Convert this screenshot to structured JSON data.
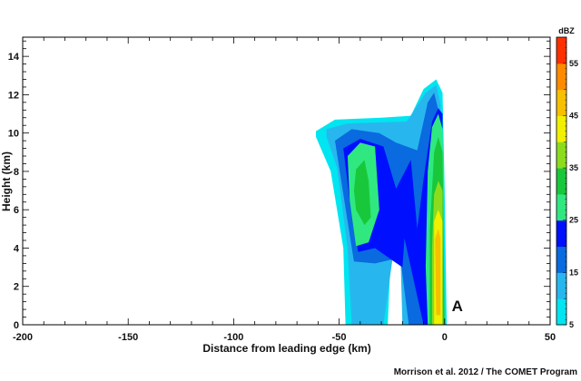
{
  "chart_data": {
    "type": "heatmap",
    "title": "",
    "xlabel": "Distance from leading edge (km)",
    "ylabel": "Height (km)",
    "xlim": [
      -200,
      50
    ],
    "ylim": [
      0,
      15
    ],
    "x_ticks": [
      -200,
      -150,
      -100,
      -50,
      0,
      50
    ],
    "y_ticks": [
      0,
      2,
      4,
      6,
      8,
      10,
      12,
      14
    ],
    "grid": false,
    "colorbar": {
      "unit": "dBZ",
      "range": [
        5,
        60
      ],
      "levels": [
        5,
        10,
        15,
        20,
        25,
        30,
        35,
        40,
        45,
        50,
        55,
        60
      ],
      "tick_labels": [
        5,
        15,
        25,
        35,
        45,
        55
      ],
      "colors": [
        "#00e5f0",
        "#27b7ee",
        "#0a6ae0",
        "#0010ff",
        "#30e880",
        "#19c83a",
        "#8cdc1e",
        "#f0f000",
        "#f7bf00",
        "#ff8a00",
        "#ff3000"
      ]
    },
    "reflectivity_regions": [
      {
        "dbz": 5,
        "points": [
          [
            -61,
            10.1
          ],
          [
            -52,
            10.7
          ],
          [
            -30,
            10.8
          ],
          [
            -16,
            10.9
          ],
          [
            -10,
            12.3
          ],
          [
            -4,
            12.8
          ],
          [
            -1,
            12.1
          ],
          [
            0,
            7
          ],
          [
            1,
            0
          ],
          [
            -19,
            0
          ],
          [
            -20,
            5
          ],
          [
            -25,
            5
          ],
          [
            -27,
            0
          ],
          [
            -47,
            0
          ],
          [
            -48,
            4
          ],
          [
            -54,
            8
          ],
          [
            -61,
            9.8
          ]
        ]
      },
      {
        "dbz": 10,
        "points": [
          [
            -56,
            10.2
          ],
          [
            -46,
            10.5
          ],
          [
            -18,
            10.6
          ],
          [
            -9,
            12.1
          ],
          [
            -4,
            12.5
          ],
          [
            -2,
            11.5
          ],
          [
            -1,
            5
          ],
          [
            0,
            0
          ],
          [
            -20,
            0
          ],
          [
            -21,
            4
          ],
          [
            -24,
            4
          ],
          [
            -29,
            0
          ],
          [
            -44,
            0
          ],
          [
            -46,
            4
          ],
          [
            -51,
            8.2
          ],
          [
            -56,
            9.8
          ]
        ]
      },
      {
        "dbz": 15,
        "points": [
          [
            -52,
            9.6
          ],
          [
            -44,
            10.2
          ],
          [
            -31,
            10
          ],
          [
            -23,
            9.5
          ],
          [
            -13,
            9.1
          ],
          [
            -8,
            11.6
          ],
          [
            -5,
            12.1
          ],
          [
            -3,
            11.2
          ],
          [
            -2,
            5
          ],
          [
            -1,
            0
          ],
          [
            -17,
            0
          ],
          [
            -21,
            3.5
          ],
          [
            -33,
            3.2
          ],
          [
            -43,
            3.3
          ],
          [
            -49,
            7.5
          ]
        ]
      },
      {
        "dbz": 20,
        "points": [
          [
            -48,
            9.2
          ],
          [
            -40,
            9.7
          ],
          [
            -29,
            9.3
          ],
          [
            -23,
            7.1
          ],
          [
            -16,
            8.6
          ],
          [
            -13,
            5
          ],
          [
            -10,
            7.6
          ],
          [
            -6,
            10.6
          ],
          [
            -3,
            11.3
          ],
          [
            -1,
            11
          ],
          [
            -1,
            0
          ],
          [
            -10,
            0
          ],
          [
            -15,
            2.5
          ],
          [
            -19,
            4.5
          ],
          [
            -20,
            3
          ],
          [
            -24,
            3.3
          ],
          [
            -33,
            4
          ],
          [
            -41,
            3.8
          ],
          [
            -45,
            6.5
          ]
        ]
      },
      {
        "dbz": 25,
        "points": [
          [
            -46,
            8.8
          ],
          [
            -40,
            9.5
          ],
          [
            -33,
            9.3
          ],
          [
            -31,
            6
          ],
          [
            -36,
            4.3
          ],
          [
            -42,
            4.1
          ],
          [
            -45,
            6.5
          ]
        ]
      },
      {
        "dbz": 25,
        "points": [
          [
            -6,
            10.3
          ],
          [
            -3,
            11
          ],
          [
            -1,
            10.2
          ],
          [
            0,
            0
          ],
          [
            -8,
            0
          ],
          [
            -9,
            3
          ],
          [
            -8,
            8
          ]
        ]
      },
      {
        "dbz": 30,
        "points": [
          [
            -42,
            8.1
          ],
          [
            -38,
            8.6
          ],
          [
            -36,
            7.5
          ],
          [
            -35,
            5.6
          ],
          [
            -38,
            5.2
          ],
          [
            -42,
            6
          ],
          [
            -43,
            7
          ]
        ]
      },
      {
        "dbz": 30,
        "points": [
          [
            -5,
            9
          ],
          [
            -3,
            9.8
          ],
          [
            -1,
            9
          ],
          [
            0,
            0
          ],
          [
            -7,
            0
          ],
          [
            -7,
            5
          ]
        ]
      },
      {
        "dbz": 35,
        "points": [
          [
            -5,
            6.8
          ],
          [
            -3,
            7.5
          ],
          [
            -1,
            7
          ],
          [
            -1,
            0
          ],
          [
            -6,
            0
          ],
          [
            -6,
            4
          ]
        ]
      },
      {
        "dbz": 40,
        "points": [
          [
            -5,
            5.4
          ],
          [
            -3,
            6
          ],
          [
            -1,
            5.4
          ],
          [
            -1,
            0
          ],
          [
            -5,
            0
          ],
          [
            -5,
            3
          ]
        ]
      },
      {
        "dbz": 45,
        "points": [
          [
            -4.5,
            4.5
          ],
          [
            -3,
            5
          ],
          [
            -2,
            4.5
          ],
          [
            -2,
            0.5
          ],
          [
            -4,
            0.5
          ]
        ]
      }
    ],
    "annotations": [
      {
        "text": "A",
        "x": 6,
        "y": 1
      }
    ],
    "credit": "Morrison et al. 2012 / The COMET Program"
  }
}
